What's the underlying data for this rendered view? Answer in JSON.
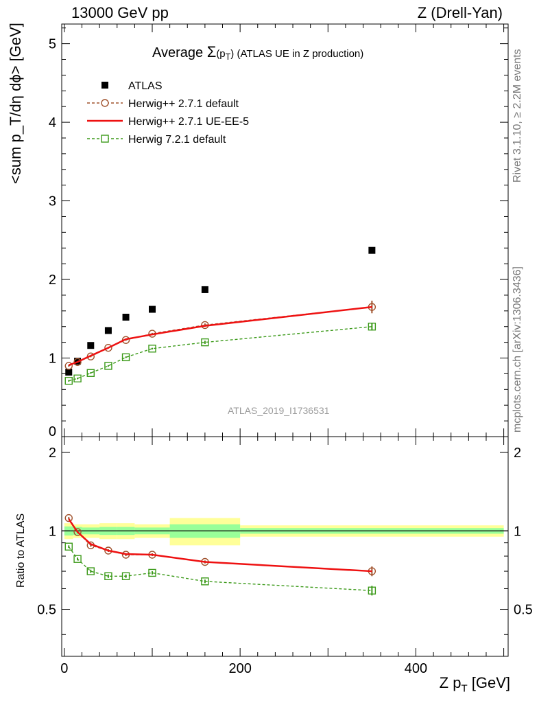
{
  "header": {
    "left": "13000 GeV pp",
    "right": "Z (Drell-Yan)"
  },
  "side_labels": {
    "rivet": "Rivet 3.1.10, ≥ 2.2M events",
    "mcplots": "mcplots.cern.ch [arXiv:1306.3436]"
  },
  "watermark": "ATLAS_2019_I1736531",
  "title": {
    "prefix": "Average",
    "symbol": "Σ",
    "arg_open": "(p",
    "arg_sub": "T",
    "arg_close": ")",
    "suffix": " (ATLAS UE in Z production)"
  },
  "axes": {
    "y_main": "<sum p_T/dη dϕ> [GeV]",
    "y_ratio": "Ratio to ATLAS",
    "x_label_main": "Z p",
    "x_label_sub": "T",
    "x_label_unit": " [GeV]"
  },
  "legend": [
    {
      "label": "ATLAS",
      "color": "#000000",
      "marker": "filled-square",
      "line": "none"
    },
    {
      "label": "Herwig++ 2.7.1 default",
      "color": "#a0522d",
      "marker": "open-circle",
      "line": "dashed"
    },
    {
      "label": "Herwig++ 2.7.1 UE-EE-5",
      "color": "#ee1111",
      "marker": "none",
      "line": "solid"
    },
    {
      "label": "Herwig 7.2.1 default",
      "color": "#3c9a1a",
      "marker": "open-square",
      "line": "dashed"
    }
  ],
  "chart_data": [
    {
      "type": "scatter",
      "panel": "main",
      "xlim": [
        -3,
        505
      ],
      "ylim": [
        0,
        5.25
      ],
      "y_ticks": [
        "1",
        "2",
        "3",
        "4",
        "5"
      ],
      "y_zero_label": "0",
      "series": [
        {
          "name": "ATLAS",
          "x": [
            5,
            15,
            30,
            50,
            70,
            100,
            160,
            350
          ],
          "y": [
            0.82,
            0.96,
            1.16,
            1.35,
            1.52,
            1.62,
            1.87,
            2.37
          ]
        },
        {
          "name": "Herwig++ 2.7.1 default",
          "x": [
            5,
            15,
            30,
            50,
            70,
            100,
            160,
            350
          ],
          "y": [
            0.9,
            0.95,
            1.02,
            1.13,
            1.23,
            1.31,
            1.42,
            1.65
          ],
          "yerr": [
            0.01,
            0.01,
            0.01,
            0.01,
            0.01,
            0.01,
            0.02,
            0.08
          ]
        },
        {
          "name": "Herwig++ 2.7.1 UE-EE-5",
          "x": [
            5,
            15,
            30,
            50,
            70,
            100,
            160,
            350
          ],
          "y": [
            0.91,
            0.95,
            1.03,
            1.13,
            1.24,
            1.3,
            1.41,
            1.65
          ]
        },
        {
          "name": "Herwig 7.2.1 default",
          "x": [
            5,
            15,
            30,
            50,
            70,
            100,
            160,
            350
          ],
          "y": [
            0.71,
            0.74,
            0.81,
            0.9,
            1.01,
            1.12,
            1.2,
            1.4
          ],
          "yerr": [
            0.01,
            0.01,
            0.01,
            0.01,
            0.01,
            0.01,
            0.02,
            0.05
          ]
        }
      ]
    },
    {
      "type": "line",
      "panel": "ratio",
      "xlim": [
        -3,
        505
      ],
      "ylim": [
        0.33,
        2.3
      ],
      "x_ticks": [
        "0",
        "200",
        "400"
      ],
      "y_ticks": [
        "0.5",
        "1",
        "2"
      ],
      "ratio_bands": [
        {
          "x_range": [
            0,
            10
          ],
          "stat": 0.04,
          "total": 0.07
        },
        {
          "x_range": [
            10,
            20
          ],
          "stat": 0.035,
          "total": 0.06
        },
        {
          "x_range": [
            20,
            40
          ],
          "stat": 0.03,
          "total": 0.06
        },
        {
          "x_range": [
            40,
            60
          ],
          "stat": 0.035,
          "total": 0.07
        },
        {
          "x_range": [
            60,
            80
          ],
          "stat": 0.035,
          "total": 0.07
        },
        {
          "x_range": [
            80,
            120
          ],
          "stat": 0.03,
          "total": 0.06
        },
        {
          "x_range": [
            120,
            200
          ],
          "stat": 0.06,
          "total": 0.12
        },
        {
          "x_range": [
            200,
            500
          ],
          "stat": 0.025,
          "total": 0.05
        }
      ],
      "series": [
        {
          "name": "Herwig++ 2.7.1 default",
          "x": [
            5,
            15,
            30,
            50,
            70,
            100,
            160,
            350
          ],
          "y": [
            1.12,
            0.99,
            0.88,
            0.84,
            0.81,
            0.81,
            0.76,
            0.7
          ],
          "yerr": [
            0.01,
            0.01,
            0.01,
            0.01,
            0.01,
            0.01,
            0.01,
            0.03
          ]
        },
        {
          "name": "Herwig++ 2.7.1 UE-EE-5",
          "x": [
            5,
            15,
            30,
            50,
            70,
            100,
            160,
            350
          ],
          "y": [
            1.11,
            0.99,
            0.89,
            0.84,
            0.815,
            0.81,
            0.76,
            0.7
          ]
        },
        {
          "name": "Herwig 7.2.1 default",
          "x": [
            5,
            15,
            30,
            50,
            70,
            100,
            160,
            350
          ],
          "y": [
            0.87,
            0.78,
            0.7,
            0.67,
            0.67,
            0.69,
            0.64,
            0.59
          ],
          "yerr": [
            0.01,
            0.01,
            0.01,
            0.01,
            0.01,
            0.01,
            0.01,
            0.025
          ]
        }
      ]
    }
  ]
}
